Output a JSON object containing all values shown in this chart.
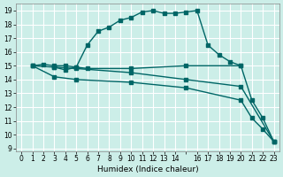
{
  "bg_color": "#cceee8",
  "grid_color": "#ffffff",
  "line_color": "#006666",
  "xlabel": "Humidex (Indice chaleur)",
  "ylabel_ticks": [
    9,
    10,
    11,
    12,
    13,
    14,
    15,
    16,
    17,
    18,
    19
  ],
  "xlim": [
    -0.5,
    23.5
  ],
  "ylim": [
    8.8,
    19.5
  ],
  "xticks": [
    0,
    1,
    2,
    3,
    4,
    5,
    6,
    7,
    8,
    9,
    10,
    11,
    12,
    13,
    14,
    15,
    16,
    17,
    18,
    19,
    20,
    21,
    22,
    23
  ],
  "xtick_labels": [
    "0",
    "1",
    "2",
    "3",
    "4",
    "5",
    "6",
    "7",
    "8",
    "9",
    "10",
    "11",
    "12",
    "13",
    "14",
    "",
    "16",
    "17",
    "18",
    "19",
    "20",
    "21",
    "22",
    "23"
  ],
  "curve1_x": [
    1,
    2,
    3,
    4,
    5,
    6,
    7,
    8,
    9,
    10,
    11,
    12,
    13,
    14,
    15,
    16,
    17,
    18,
    19,
    20,
    21,
    22,
    23
  ],
  "curve1_y": [
    15.0,
    15.1,
    15.0,
    15.0,
    14.9,
    16.5,
    17.5,
    17.8,
    18.3,
    18.5,
    18.9,
    19.0,
    18.8,
    18.8,
    18.9,
    19.0,
    16.5,
    15.8,
    15.3,
    15.0,
    12.5,
    11.2,
    9.5
  ],
  "curve2_x": [
    1,
    3,
    4,
    5,
    6,
    10,
    15,
    20
  ],
  "curve2_y": [
    15.0,
    14.9,
    14.7,
    14.9,
    14.8,
    14.8,
    15.0,
    15.0
  ],
  "curve3_x": [
    1,
    3,
    5,
    10,
    15,
    20,
    21,
    22,
    23
  ],
  "curve3_y": [
    15.0,
    14.2,
    14.0,
    13.8,
    13.4,
    12.5,
    11.2,
    10.4,
    9.5
  ],
  "curve4_x": [
    3,
    5,
    10,
    15,
    20,
    23
  ],
  "curve4_y": [
    14.9,
    14.8,
    14.5,
    14.0,
    13.5,
    9.5
  ]
}
